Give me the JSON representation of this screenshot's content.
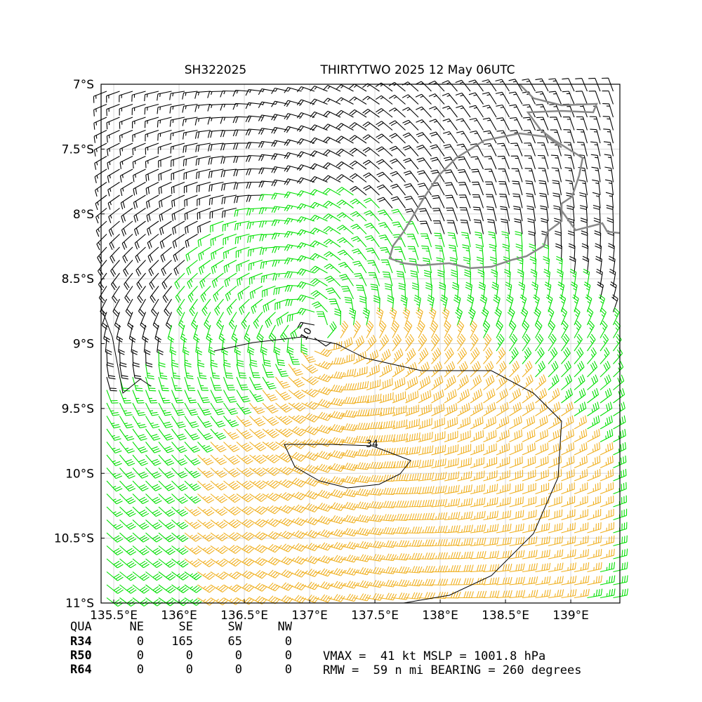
{
  "chart_data": {
    "type": "wind-barb-map",
    "title_left": "SH322025",
    "title_right": "THIRTYTWO 2025 12 May 06UTC",
    "xlim": [
      135.403,
      139.376
    ],
    "ylim": [
      -11,
      -7
    ],
    "xticks": [
      {
        "value": 135.5,
        "label": "135.5°E"
      },
      {
        "value": 136,
        "label": "136°E"
      },
      {
        "value": 136.5,
        "label": "136.5°E"
      },
      {
        "value": 137,
        "label": "137°E"
      },
      {
        "value": 137.5,
        "label": "137.5°E"
      },
      {
        "value": 138,
        "label": "138°E"
      },
      {
        "value": 138.5,
        "label": "138.5°E"
      },
      {
        "value": 139,
        "label": "139°E"
      }
    ],
    "yticks": [
      {
        "value": -7,
        "label": "7°S"
      },
      {
        "value": -7.5,
        "label": "7.5°S"
      },
      {
        "value": -8,
        "label": "8°S"
      },
      {
        "value": -8.5,
        "label": "8.5°S"
      },
      {
        "value": -9,
        "label": "9°S"
      },
      {
        "value": -9.5,
        "label": "9.5°S"
      },
      {
        "value": -10,
        "label": "10°S"
      },
      {
        "value": -10.5,
        "label": "10.5°S"
      },
      {
        "value": -11,
        "label": "11°S"
      }
    ],
    "grid": true,
    "contour_labels": [
      "34",
      "10"
    ]
  },
  "stats_table": {
    "header": [
      "QUA",
      "NE",
      "SE",
      "SW",
      "NW"
    ],
    "rows": [
      [
        "R34",
        0,
        165,
        65,
        0
      ],
      [
        "R50",
        0,
        0,
        0,
        0
      ],
      [
        "R64",
        0,
        0,
        0,
        0
      ]
    ]
  },
  "summary": [
    "VMAX =  41 kt MSLP = 1001.8 hPa",
    "RMW =  59 n mi BEARING = 260 degrees"
  ]
}
